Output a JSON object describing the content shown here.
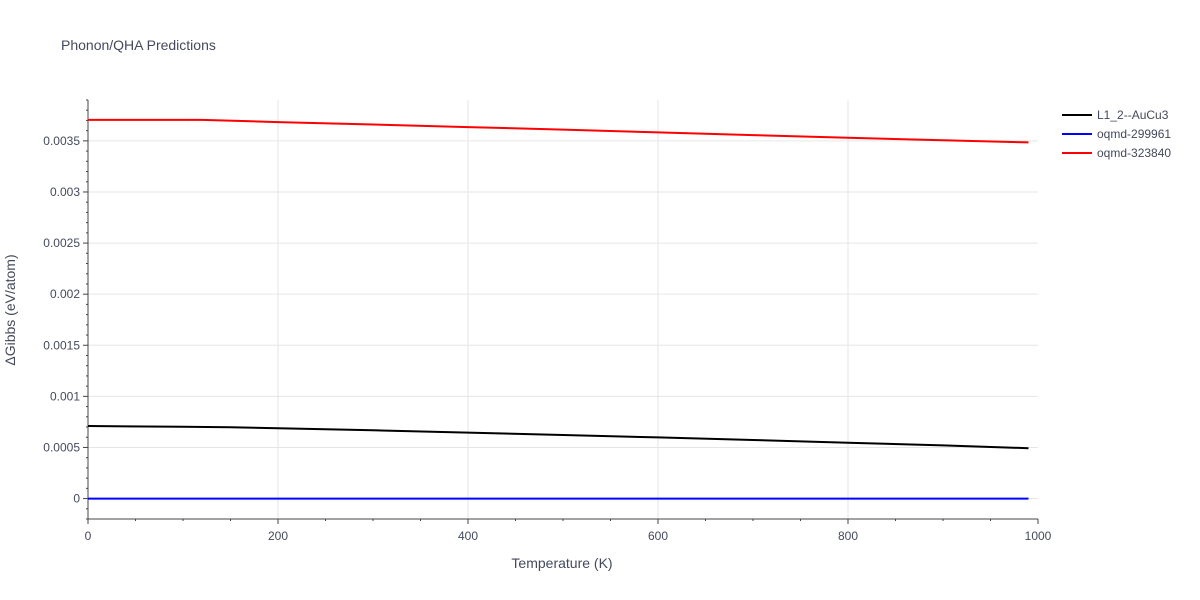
{
  "chart_data": {
    "type": "line",
    "title": "Phonon/QHA Predictions",
    "xlabel": "Temperature (K)",
    "ylabel": "ΔGibbs (eV/atom)",
    "xlim": [
      0,
      1000
    ],
    "ylim": [
      -0.0002,
      0.0039
    ],
    "x_ticks": [
      0,
      200,
      400,
      600,
      800,
      1000
    ],
    "x_tick_labels": [
      "0",
      "200",
      "400",
      "600",
      "800",
      "1000"
    ],
    "y_ticks": [
      0,
      0.0005,
      0.001,
      0.0015,
      0.002,
      0.0025,
      0.003,
      0.0035
    ],
    "y_tick_labels": [
      "0",
      "0.0005",
      "0.001",
      "0.0015",
      "0.002",
      "0.0025",
      "0.003",
      "0.0035"
    ],
    "grid": true,
    "legend_position": "top-right",
    "series": [
      {
        "name": "L1_2--AuCu3",
        "color": "#000000",
        "x": [
          0,
          100,
          150,
          200,
          300,
          400,
          500,
          600,
          700,
          800,
          900,
          990
        ],
        "y": [
          0.00071,
          0.000702,
          0.000698,
          0.000688,
          0.000668,
          0.000645,
          0.000622,
          0.000598,
          0.000573,
          0.000547,
          0.00052,
          0.000493
        ]
      },
      {
        "name": "oqmd-299961",
        "color": "#0000ff",
        "x": [
          0,
          200,
          400,
          600,
          800,
          990
        ],
        "y": [
          0,
          0,
          0,
          0,
          0,
          0
        ]
      },
      {
        "name": "oqmd-323840",
        "color": "#ff0000",
        "x": [
          0,
          100,
          120,
          200,
          300,
          400,
          500,
          600,
          700,
          800,
          900,
          990
        ],
        "y": [
          0.003705,
          0.003705,
          0.003705,
          0.003684,
          0.00366,
          0.003635,
          0.00361,
          0.003583,
          0.003557,
          0.00353,
          0.003507,
          0.003485
        ]
      }
    ]
  }
}
